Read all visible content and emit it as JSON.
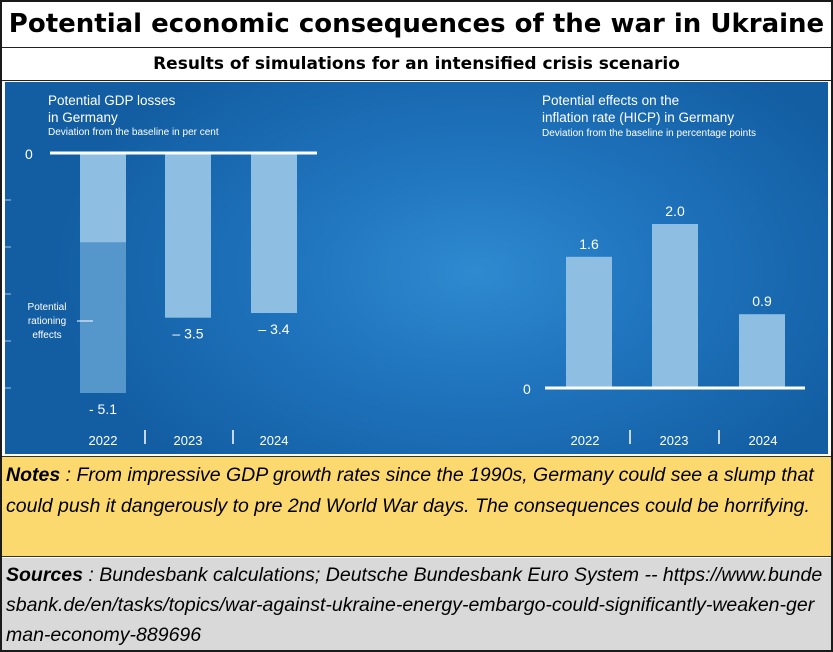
{
  "header": {
    "title": "Potential economic consequences of the war in Ukraine",
    "subtitle": "Results of simulations for an intensified crisis scenario"
  },
  "chart_data": [
    {
      "type": "bar",
      "title": "Potential GDP losses in Germany",
      "title_lines": [
        "Potential GDP losses",
        "in Germany"
      ],
      "subtitle": "Deviation from the baseline in per cent",
      "categories": [
        "2022",
        "2023",
        "2024"
      ],
      "series": [
        {
          "values": [
            -1.9,
            -3.5,
            -3.4
          ]
        },
        {
          "name": "Potential rationing effects",
          "values": [
            -3.2,
            0,
            0
          ]
        }
      ],
      "totals": [
        -5.1,
        -3.5,
        -3.4
      ],
      "value_labels": [
        "- 5.1",
        "– 3.5",
        "– 3.4"
      ],
      "annotation_lines": [
        "Potential",
        "rationing",
        "effects"
      ],
      "baseline_label": "0",
      "ylim": [
        -5.2,
        0
      ],
      "colors": {
        "base": "#8ebfe2",
        "rationing": "#5596cb"
      }
    },
    {
      "type": "bar",
      "title": "Potential effects on the inflation rate (HICP) in Germany",
      "title_lines": [
        "Potential effects on the",
        "inflation rate (HICP) in Germany"
      ],
      "subtitle": "Deviation from the baseline in percentage points",
      "categories": [
        "2022",
        "2023",
        "2024"
      ],
      "values": [
        1.6,
        2.0,
        0.9
      ],
      "value_labels": [
        "1.6",
        "2.0",
        "0.9"
      ],
      "baseline_label": "0",
      "ylim": [
        0,
        2.3
      ],
      "colors": {
        "base": "#8ebfe2"
      }
    }
  ],
  "notes": {
    "label": "Notes",
    "text": " : From impressive GDP growth rates since the 1990s, Germany could see a slump that could push it dangerously to pre 2nd World War days.  The consequences could be horrifying."
  },
  "sources": {
    "label": "Sources",
    "text": " : Bundesbank calculations; Deutsche Bundesbank Euro System -- https://www.bundesbank.de/en/tasks/topics/war-against-ukraine-energy-embargo-could-significantly-weaken-german-economy-889696"
  }
}
